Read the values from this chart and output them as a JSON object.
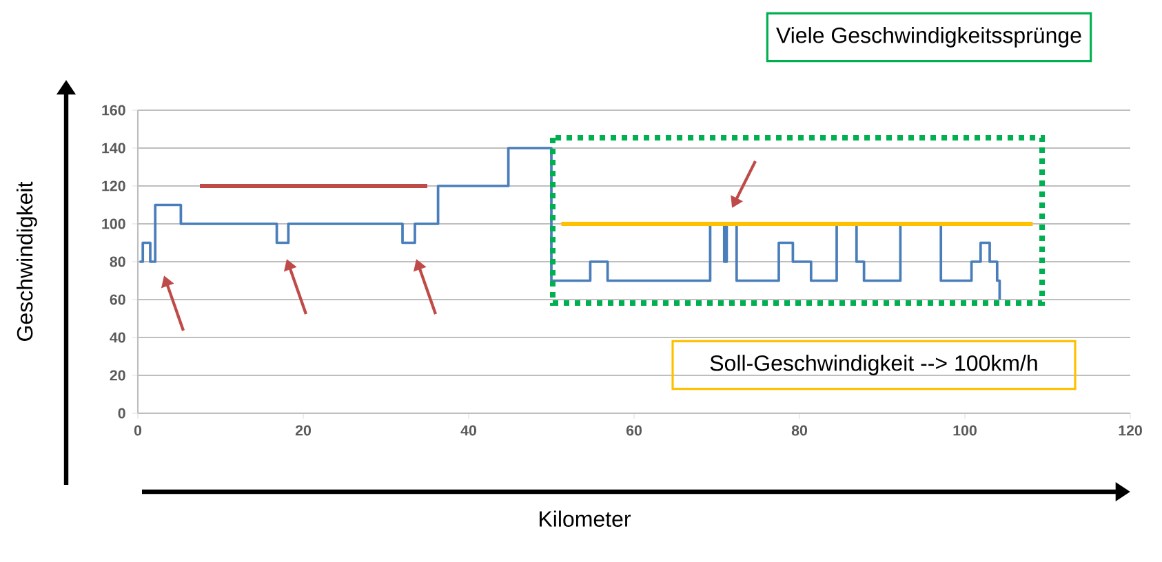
{
  "chart_data": {
    "type": "step",
    "xlabel": "Kilometer",
    "ylabel": "Geschwindigkeit",
    "xlim": [
      0,
      120
    ],
    "ylim": [
      0,
      160
    ],
    "xticks": [
      0,
      20,
      40,
      60,
      80,
      100,
      120
    ],
    "yticks": [
      0,
      20,
      40,
      60,
      80,
      100,
      120,
      140,
      160
    ],
    "grid": "y",
    "series": [
      {
        "color": "#4a7ebb",
        "x": [
          0.2,
          0.6,
          1.5,
          2.1,
          5.2,
          16.8,
          18.2,
          32.0,
          33.5,
          36.3,
          44.8,
          50.0,
          54.7,
          56.8,
          69.2,
          70.9,
          71.2,
          72.4,
          77.5,
          79.2,
          81.4,
          84.5,
          86.9,
          87.8,
          92.2,
          97.1,
          100.8,
          101.9,
          103.0,
          103.9,
          104.2
        ],
        "values": [
          80,
          90,
          80,
          110,
          100,
          90,
          100,
          90,
          100,
          120,
          140,
          70,
          80,
          70,
          100,
          80,
          100,
          70,
          90,
          80,
          70,
          100,
          80,
          70,
          100,
          70,
          80,
          90,
          80,
          70,
          60
        ]
      },
      {
        "type": "line",
        "color": "#be4b48",
        "x": [
          7.5,
          35.0
        ],
        "values": [
          120,
          120
        ]
      },
      {
        "type": "line",
        "color": "#ffc000",
        "x": [
          51.2,
          108.2
        ],
        "values": [
          100,
          100
        ]
      }
    ],
    "annotations": [
      "Viele Geschwindigkeitssprünge",
      "Soll-Geschwindigkeit --> 100km/h"
    ]
  }
}
